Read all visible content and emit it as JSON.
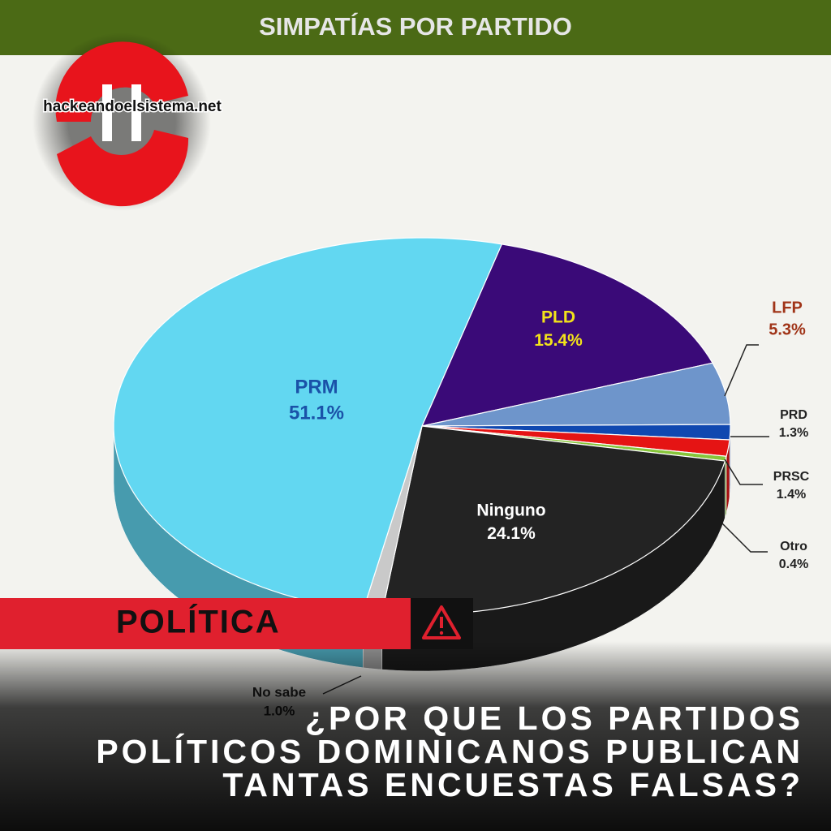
{
  "chart_data": {
    "type": "pie",
    "title": "SIMPATÍAS POR PARTIDO",
    "categories": [
      "PLD",
      "LFP",
      "PRD",
      "PRSC",
      "Otro",
      "Ninguno",
      "No sabe",
      "PRM"
    ],
    "values": [
      15.4,
      5.3,
      1.3,
      1.4,
      0.4,
      24.1,
      1.0,
      51.1
    ],
    "value_labels": [
      "15.4%",
      "5.3%",
      "1.3%",
      "1.4%",
      "0.4%",
      "24.1%",
      "1.0%",
      "51.1%"
    ],
    "colors": [
      "#3a0a78",
      "#6e95cb",
      "#1048b0",
      "#e51414",
      "#86c53a",
      "#232323",
      "#c9c9c9",
      "#62d7f1"
    ]
  },
  "logo": "hackeandoelsistema.net",
  "tag": "POLÍTICA",
  "headline": [
    "¿POR QUE LOS PARTIDOS",
    "POLÍTICOS DOMINICANOS PUBLICAN",
    "TANTAS ENCUESTAS FALSAS?"
  ]
}
